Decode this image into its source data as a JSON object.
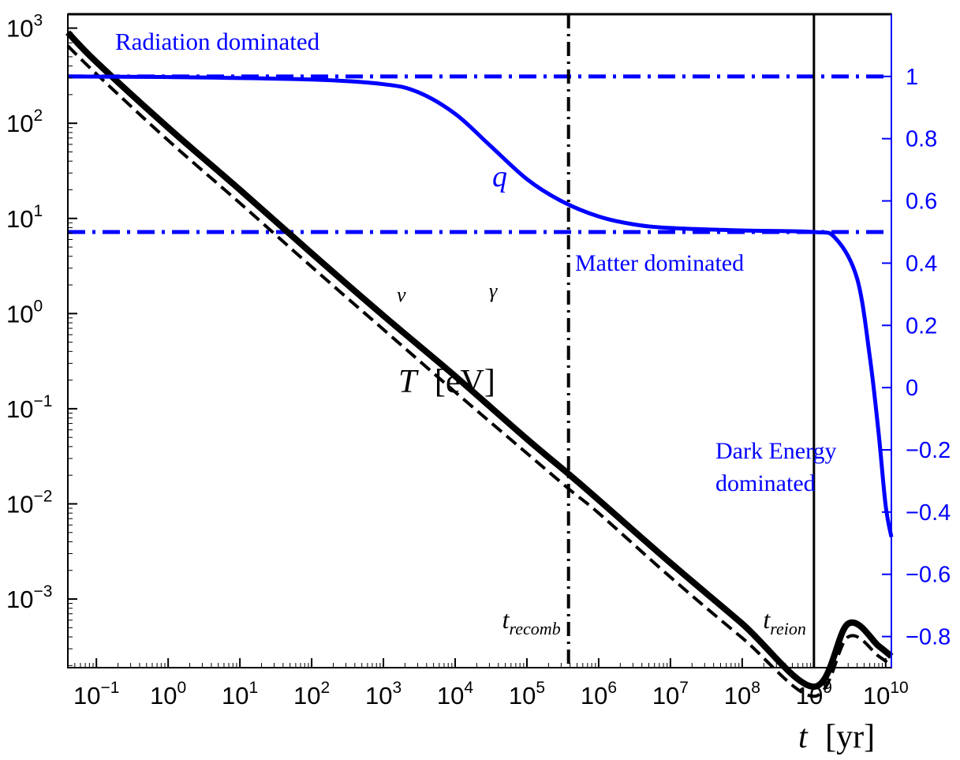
{
  "chart_data": {
    "type": "line",
    "x_axis": {
      "label_var": "t",
      "label_unit": "[yr]",
      "scale": "log",
      "range": [
        0.04,
        12000000000
      ],
      "ticks": [
        {
          "value": 0.1,
          "base": "10",
          "exp": "−1"
        },
        {
          "value": 1,
          "base": "10",
          "exp": "0"
        },
        {
          "value": 10,
          "base": "10",
          "exp": "1"
        },
        {
          "value": 100,
          "base": "10",
          "exp": "2"
        },
        {
          "value": 1000,
          "base": "10",
          "exp": "3"
        },
        {
          "value": 10000,
          "base": "10",
          "exp": "4"
        },
        {
          "value": 100000,
          "base": "10",
          "exp": "5"
        },
        {
          "value": 1000000,
          "base": "10",
          "exp": "6"
        },
        {
          "value": 10000000,
          "base": "10",
          "exp": "7"
        },
        {
          "value": 100000000,
          "base": "10",
          "exp": "8"
        },
        {
          "value": 1000000000,
          "base": "10",
          "exp": "9"
        },
        {
          "value": 10000000000,
          "base": "10",
          "exp": "10"
        }
      ]
    },
    "y_left_axis": {
      "scale": "log",
      "range": [
        0.00019,
        1400
      ],
      "ticks": [
        {
          "value": 1000,
          "base": "10",
          "exp": "3"
        },
        {
          "value": 100,
          "base": "10",
          "exp": "2"
        },
        {
          "value": 10,
          "base": "10",
          "exp": "1"
        },
        {
          "value": 1,
          "base": "10",
          "exp": "0"
        },
        {
          "value": 0.1,
          "base": "10",
          "exp": "−1"
        },
        {
          "value": 0.01,
          "base": "10",
          "exp": "−2"
        },
        {
          "value": 0.001,
          "base": "10",
          "exp": "−3"
        }
      ]
    },
    "y_right_axis": {
      "scale": "linear",
      "range": [
        -0.9,
        1.2
      ],
      "color": "#0000ff",
      "ticks": [
        {
          "value": 1,
          "label": "1"
        },
        {
          "value": 0.8,
          "label": "0.8"
        },
        {
          "value": 0.6,
          "label": "0.6"
        },
        {
          "value": 0.4,
          "label": "0.4"
        },
        {
          "value": 0.2,
          "label": "0.2"
        },
        {
          "value": 0,
          "label": "0"
        },
        {
          "value": -0.2,
          "label": "−0.2"
        },
        {
          "value": -0.4,
          "label": "−0.4"
        },
        {
          "value": -0.6,
          "label": "−0.6"
        },
        {
          "value": -0.8,
          "label": "−0.8"
        }
      ]
    },
    "series": [
      {
        "axis": "left",
        "color": "#000000",
        "style": "solid-thick",
        "points": [
          [
            0.04,
            900
          ],
          [
            0.1,
            440
          ],
          [
            1,
            90
          ],
          [
            10,
            20
          ],
          [
            100,
            4.3
          ],
          [
            1000,
            0.95
          ],
          [
            10000,
            0.22
          ],
          [
            100000,
            0.048
          ],
          [
            400000,
            0.02
          ],
          [
            1000000,
            0.011
          ],
          [
            10000000,
            0.0024
          ],
          [
            100000000,
            0.00055
          ],
          [
            1000000000,
            0.00012
          ],
          [
            3000000000,
            0.00055
          ],
          [
            8000000000,
            0.00032
          ],
          [
            12000000000,
            0.00025
          ]
        ]
      },
      {
        "axis": "left",
        "color": "#000000",
        "style": "dashed",
        "points": [
          [
            0.04,
            650
          ],
          [
            0.1,
            330
          ],
          [
            1,
            66
          ],
          [
            10,
            14.5
          ],
          [
            100,
            3.1
          ],
          [
            1000,
            0.68
          ],
          [
            10000,
            0.15
          ],
          [
            100000,
            0.034
          ],
          [
            400000,
            0.014
          ],
          [
            1000000,
            0.008
          ],
          [
            10000000,
            0.0017
          ],
          [
            100000000,
            0.00039
          ],
          [
            1000000000,
            9.5e-05
          ],
          [
            3000000000,
            0.0004
          ],
          [
            8000000000,
            0.00025
          ],
          [
            12000000000,
            0.0002
          ]
        ]
      },
      {
        "axis": "right",
        "color": "#0000ff",
        "style": "solid",
        "points": [
          [
            0.04,
            1.0
          ],
          [
            1,
            0.998
          ],
          [
            100,
            0.99
          ],
          [
            1000,
            0.975
          ],
          [
            3000,
            0.95
          ],
          [
            10000,
            0.88
          ],
          [
            30000,
            0.78
          ],
          [
            100000,
            0.67
          ],
          [
            300000,
            0.6
          ],
          [
            1000000,
            0.55
          ],
          [
            3000000,
            0.525
          ],
          [
            10000000,
            0.513
          ],
          [
            100000000,
            0.505
          ],
          [
            1000000000,
            0.5
          ],
          [
            2000000000,
            0.48
          ],
          [
            4000000000,
            0.35
          ],
          [
            6000000000,
            0.1
          ],
          [
            8000000000,
            -0.15
          ],
          [
            10000000000,
            -0.38
          ],
          [
            12000000000,
            -0.48
          ]
        ]
      }
    ],
    "reference_lines": [
      {
        "orientation": "horizontal",
        "axis": "right",
        "value": 1.0,
        "color": "#0000ff",
        "style": "dash-dot"
      },
      {
        "orientation": "horizontal",
        "axis": "right",
        "value": 0.5,
        "color": "#0000ff",
        "style": "dash-dot"
      },
      {
        "orientation": "vertical",
        "value": 380000,
        "color": "#000000",
        "style": "dash-dot",
        "label_main": "t",
        "label_sub": "recomb"
      },
      {
        "orientation": "vertical",
        "value": 1000000000,
        "color": "#000000",
        "style": "solid",
        "label_main": "t",
        "label_sub": "reion"
      }
    ],
    "annotations": {
      "radiation": "Radiation dominated",
      "matter": "Matter dominated",
      "dark_energy_1": "Dark Energy",
      "dark_energy_2": "dominated",
      "q_label": "q",
      "nu_label": "ν",
      "gamma_label": "γ",
      "temp_var": "T",
      "temp_unit": "[eV]"
    },
    "grid": false,
    "legend": "none"
  }
}
